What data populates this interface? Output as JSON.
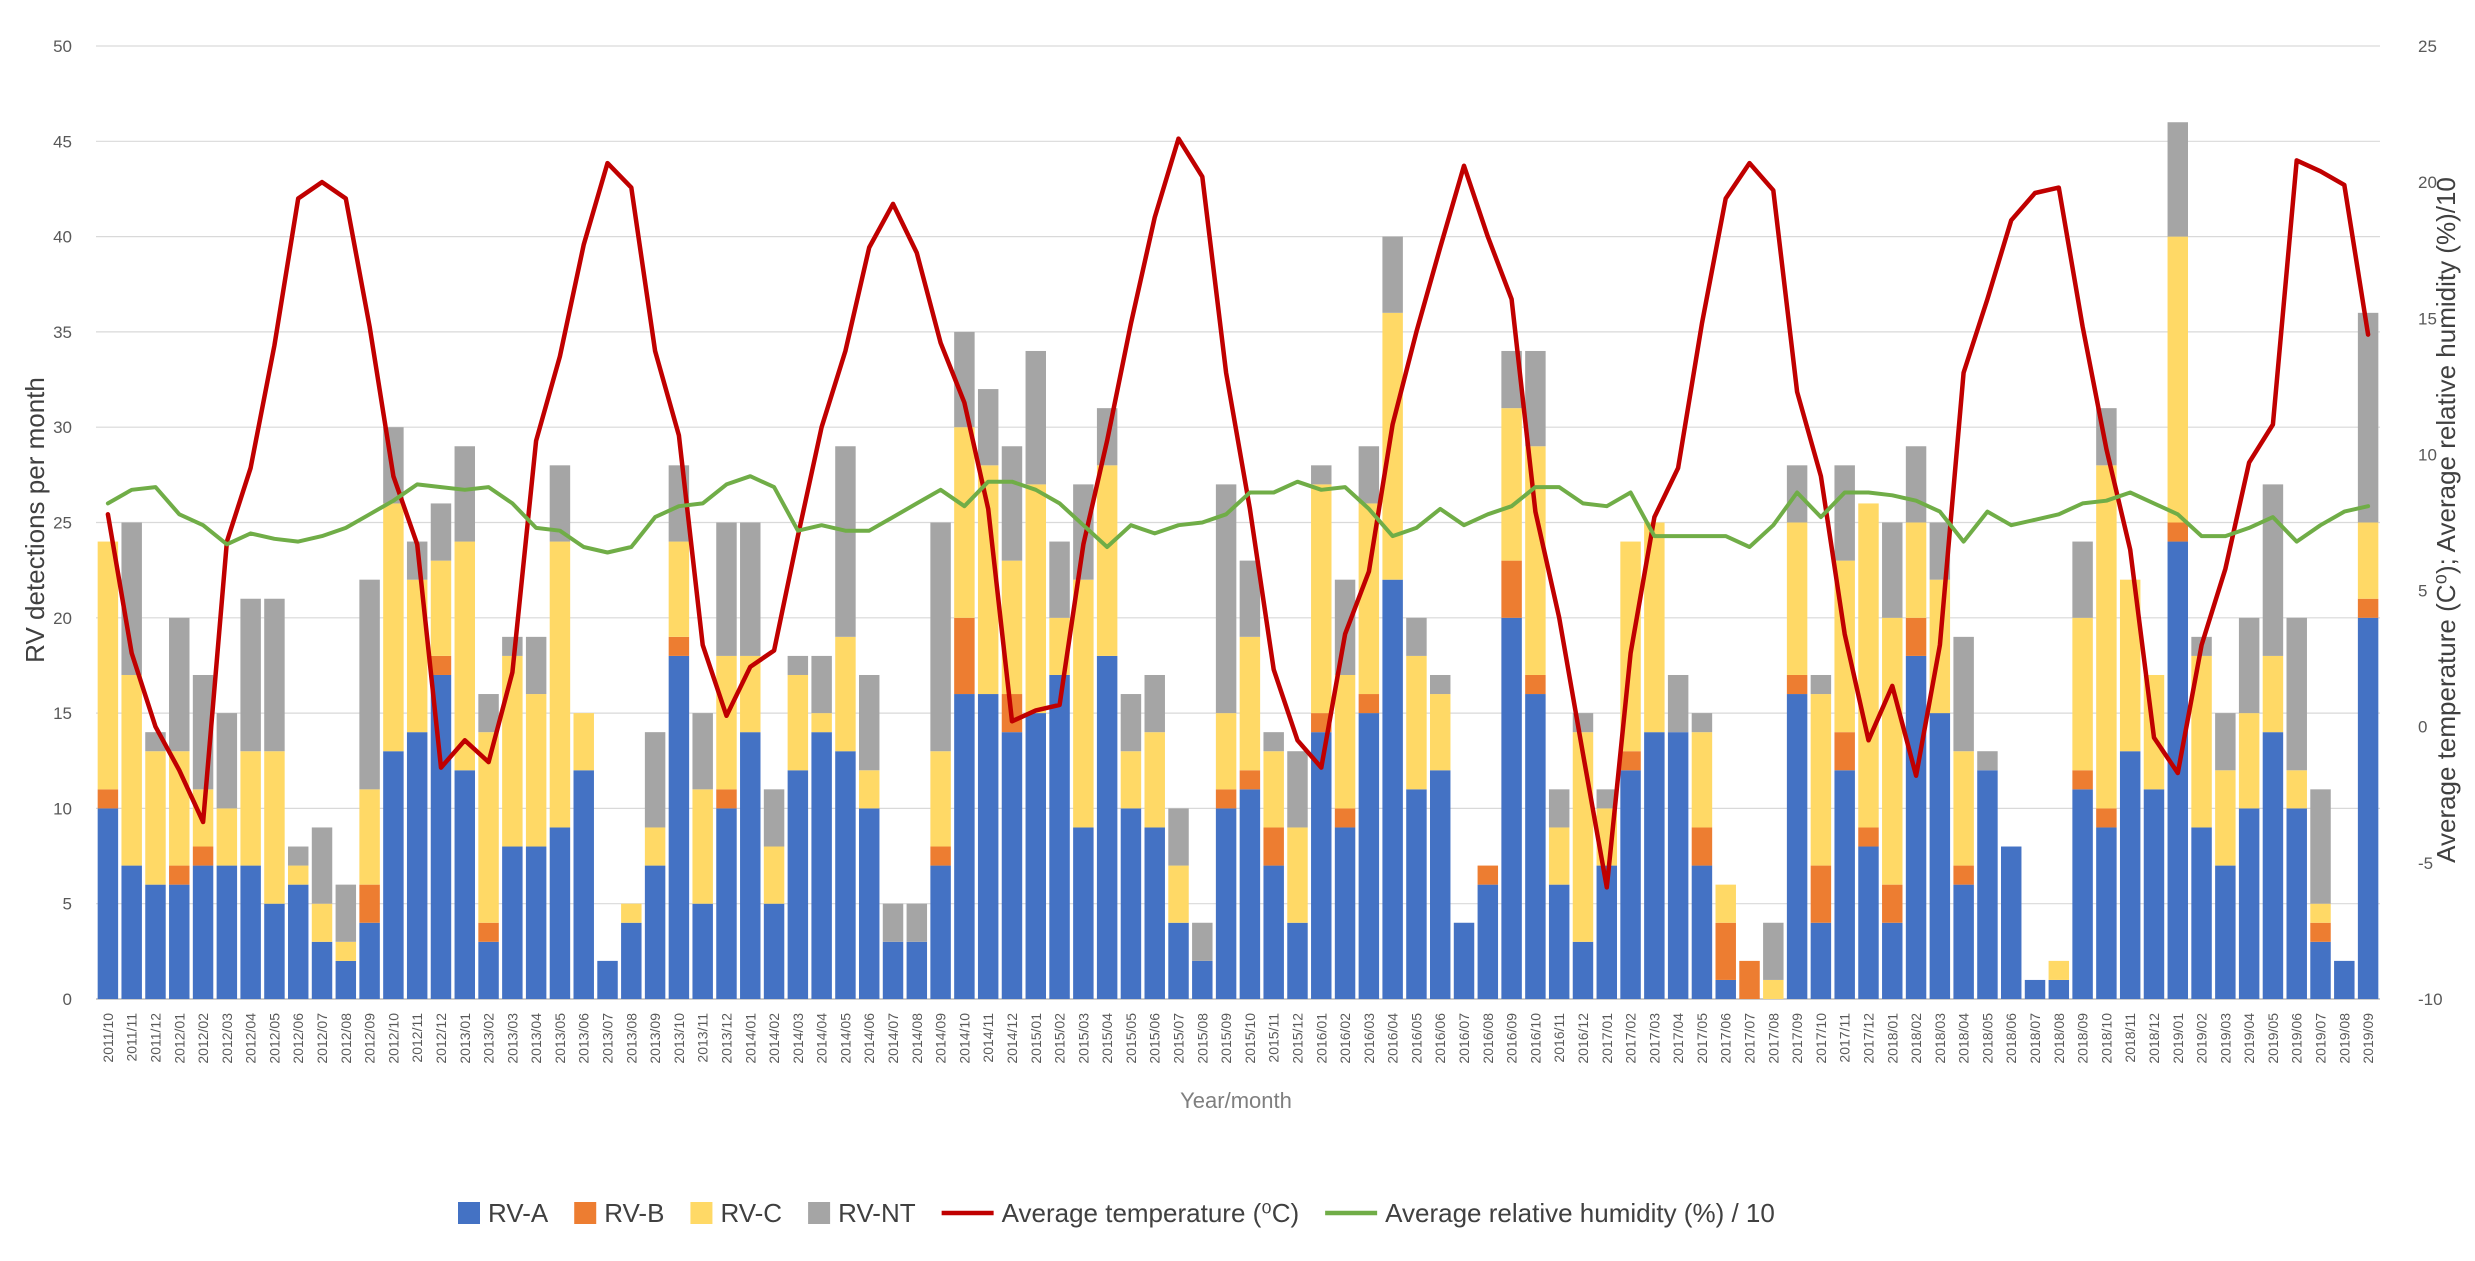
{
  "chart_data": {
    "type": "bar",
    "stacked": true,
    "title": "",
    "xlabel": "Year/month",
    "ylabel": "RV detections per month",
    "y2label": "Average temperature (C⁰); Average relative humidity (%)/10",
    "ylim": [
      0,
      50
    ],
    "y2lim": [
      -10,
      25
    ],
    "yticks": [
      0,
      5,
      10,
      15,
      20,
      25,
      30,
      35,
      40,
      45,
      50
    ],
    "y2ticks": [
      -10,
      -5,
      0,
      5,
      10,
      15,
      20,
      25
    ],
    "grid": true,
    "legend_position": "bottom",
    "categories": [
      "2011/10",
      "2011/11",
      "2011/12",
      "2012/01",
      "2012/02",
      "2012/03",
      "2012/04",
      "2012/05",
      "2012/06",
      "2012/07",
      "2012/08",
      "2012/09",
      "2012/10",
      "2012/11",
      "2012/12",
      "2013/01",
      "2013/02",
      "2013/03",
      "2013/04",
      "2013/05",
      "2013/06",
      "2013/07",
      "2013/08",
      "2013/09",
      "2013/10",
      "2013/11",
      "2013/12",
      "2014/01",
      "2014/02",
      "2014/03",
      "2014/04",
      "2014/05",
      "2014/06",
      "2014/07",
      "2014/08",
      "2014/09",
      "2014/10",
      "2014/11",
      "2014/12",
      "2015/01",
      "2015/02",
      "2015/03",
      "2015/04",
      "2015/05",
      "2015/06",
      "2015/07",
      "2015/08",
      "2015/09",
      "2015/10",
      "2015/11",
      "2015/12",
      "2016/01",
      "2016/02",
      "2016/03",
      "2016/04",
      "2016/05",
      "2016/06",
      "2016/07",
      "2016/08",
      "2016/09",
      "2016/10",
      "2016/11",
      "2016/12",
      "2017/01",
      "2017/02",
      "2017/03",
      "2017/04",
      "2017/05",
      "2017/06",
      "2017/07",
      "2017/08",
      "2017/09",
      "2017/10",
      "2017/11",
      "2017/12",
      "2018/01",
      "2018/02",
      "2018/03",
      "2018/04",
      "2018/05",
      "2018/06",
      "2018/07",
      "2018/08",
      "2018/09",
      "2018/10",
      "2018/11",
      "2018/12",
      "2019/01",
      "2019/02",
      "2019/03",
      "2019/04",
      "2019/05",
      "2019/06",
      "2019/07",
      "2019/08",
      "2019/09"
    ],
    "series": [
      {
        "name": "RV-A",
        "kind": "bar",
        "color": "#4472c4",
        "values": [
          10,
          7,
          6,
          6,
          7,
          7,
          7,
          5,
          6,
          3,
          2,
          4,
          13,
          14,
          17,
          12,
          3,
          8,
          8,
          9,
          12,
          2,
          4,
          7,
          18,
          5,
          10,
          14,
          5,
          12,
          14,
          13,
          10,
          3,
          3,
          7,
          16,
          16,
          14,
          15,
          17,
          9,
          18,
          10,
          9,
          4,
          2,
          10,
          11,
          7,
          4,
          14,
          9,
          15,
          22,
          11,
          12,
          4,
          6,
          20,
          16,
          6,
          3,
          7,
          12,
          14,
          14,
          7,
          1,
          0,
          0,
          16,
          4,
          12,
          8,
          4,
          18,
          15,
          6,
          12,
          8,
          1,
          1,
          11,
          9,
          13,
          11,
          24,
          9,
          7,
          10,
          14,
          10,
          3,
          2,
          20
        ]
      },
      {
        "name": "RV-B",
        "kind": "bar",
        "color": "#ed7d31",
        "values": [
          1,
          0,
          0,
          1,
          1,
          0,
          0,
          0,
          0,
          0,
          0,
          2,
          0,
          0,
          1,
          0,
          1,
          0,
          0,
          0,
          0,
          0,
          0,
          0,
          1,
          0,
          1,
          0,
          0,
          0,
          0,
          0,
          0,
          0,
          0,
          1,
          4,
          0,
          2,
          0,
          0,
          0,
          0,
          0,
          0,
          0,
          0,
          1,
          1,
          2,
          0,
          1,
          1,
          1,
          0,
          0,
          0,
          0,
          1,
          3,
          1,
          0,
          0,
          0,
          1,
          0,
          0,
          2,
          3,
          2,
          0,
          1,
          3,
          2,
          1,
          2,
          2,
          0,
          1,
          0,
          0,
          0,
          0,
          1,
          1,
          0,
          0,
          1,
          0,
          0,
          0,
          0,
          0,
          1,
          0,
          1
        ]
      },
      {
        "name": "RV-C",
        "kind": "bar",
        "color": "#ffd966",
        "values": [
          13,
          10,
          7,
          6,
          3,
          3,
          6,
          8,
          1,
          2,
          1,
          5,
          13,
          8,
          5,
          12,
          10,
          10,
          8,
          15,
          3,
          0,
          1,
          2,
          5,
          6,
          7,
          4,
          3,
          5,
          1,
          6,
          2,
          0,
          0,
          5,
          10,
          12,
          7,
          12,
          3,
          13,
          10,
          3,
          5,
          3,
          0,
          4,
          7,
          4,
          5,
          12,
          7,
          10,
          14,
          7,
          4,
          0,
          0,
          8,
          12,
          3,
          11,
          3,
          11,
          11,
          0,
          5,
          2,
          0,
          1,
          8,
          9,
          9,
          17,
          14,
          5,
          7,
          6,
          0,
          0,
          0,
          1,
          8,
          18,
          9,
          6,
          15,
          9,
          5,
          5,
          4,
          2,
          1,
          0,
          4
        ]
      },
      {
        "name": "RV-NT",
        "kind": "bar",
        "color": "#a5a5a5",
        "values": [
          0,
          8,
          1,
          7,
          6,
          5,
          8,
          8,
          1,
          4,
          3,
          11,
          4,
          2,
          3,
          5,
          2,
          1,
          3,
          4,
          0,
          0,
          0,
          5,
          4,
          4,
          7,
          7,
          3,
          1,
          3,
          10,
          5,
          2,
          2,
          12,
          5,
          4,
          6,
          7,
          4,
          5,
          3,
          3,
          3,
          3,
          2,
          12,
          4,
          1,
          4,
          1,
          5,
          3,
          4,
          2,
          1,
          0,
          0,
          3,
          5,
          2,
          1,
          1,
          0,
          0,
          3,
          1,
          0,
          0,
          3,
          3,
          1,
          5,
          0,
          5,
          4,
          3,
          6,
          1,
          0,
          0,
          0,
          4,
          3,
          0,
          0,
          6,
          1,
          3,
          5,
          9,
          8,
          6,
          0,
          11
        ]
      },
      {
        "name": "Average temperature (⁰C)",
        "kind": "line",
        "axis": "secondary",
        "color": "#c00000",
        "values": [
          7.8,
          2.7,
          0.0,
          -1.6,
          -3.5,
          6.8,
          9.5,
          14.0,
          19.4,
          20.0,
          19.4,
          14.7,
          9.2,
          6.7,
          -1.5,
          -0.5,
          -1.3,
          2.0,
          10.5,
          13.6,
          17.7,
          20.7,
          19.8,
          13.8,
          10.7,
          3.0,
          0.4,
          2.2,
          2.8,
          7.0,
          11.0,
          13.8,
          17.6,
          19.2,
          17.4,
          14.1,
          11.9,
          8.0,
          0.2,
          0.6,
          0.8,
          6.7,
          10.5,
          14.8,
          18.7,
          21.6,
          20.2,
          13.0,
          8.0,
          2.1,
          -0.5,
          -1.5,
          3.4,
          5.7,
          11.1,
          14.5,
          17.6,
          20.6,
          18.0,
          15.7,
          7.9,
          4.0,
          -1.0,
          -5.9,
          2.7,
          7.7,
          9.5,
          14.8,
          19.4,
          20.7,
          19.7,
          12.3,
          9.2,
          3.4,
          -0.5,
          1.5,
          -1.8,
          3.0,
          13.0,
          15.7,
          18.6,
          19.6,
          19.8,
          14.7,
          10.2,
          6.5,
          -0.4,
          -1.7,
          3.0,
          5.8,
          9.7,
          11.1,
          20.8,
          20.4,
          19.9,
          14.4
        ]
      },
      {
        "name": "Average relative humidity (%) / 10",
        "kind": "line",
        "axis": "secondary",
        "color": "#70ad47",
        "values": [
          8.2,
          8.7,
          8.8,
          7.8,
          7.4,
          6.7,
          7.1,
          6.9,
          6.8,
          7.0,
          7.3,
          7.8,
          8.3,
          8.9,
          8.8,
          8.7,
          8.8,
          8.2,
          7.3,
          7.2,
          6.6,
          6.4,
          6.6,
          7.7,
          8.1,
          8.2,
          8.9,
          9.2,
          8.8,
          7.2,
          7.4,
          7.2,
          7.2,
          7.7,
          8.2,
          8.7,
          8.1,
          9.0,
          9.0,
          8.7,
          8.2,
          7.4,
          6.6,
          7.4,
          7.1,
          7.4,
          7.5,
          7.8,
          8.6,
          8.6,
          9.0,
          8.7,
          8.8,
          8.0,
          7.0,
          7.3,
          8.0,
          7.4,
          7.8,
          8.1,
          8.8,
          8.8,
          8.2,
          8.1,
          8.6,
          7.0,
          7.0,
          7.0,
          7.0,
          6.6,
          7.4,
          8.6,
          7.7,
          8.6,
          8.6,
          8.5,
          8.3,
          7.9,
          6.8,
          7.9,
          7.4,
          7.6,
          7.8,
          8.2,
          8.3,
          8.6,
          8.2,
          7.8,
          7.0,
          7.0,
          7.3,
          7.7,
          6.8,
          7.4,
          7.9,
          8.1
        ]
      }
    ]
  }
}
